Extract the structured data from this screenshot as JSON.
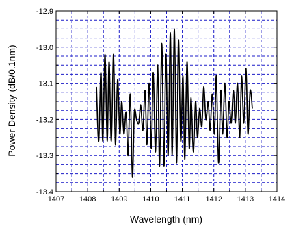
{
  "chart_data": {
    "type": "line",
    "title": "",
    "xlabel": "Wavelength (nm)",
    "ylabel": "Power Density (dB/0.1nm)",
    "xlim": [
      1407,
      1414
    ],
    "ylim": [
      -13.4,
      -12.9
    ],
    "x_ticks": [
      "1407",
      "1408",
      "1409",
      "1410",
      "1411",
      "1412",
      "1413",
      "1414"
    ],
    "y_ticks": [
      "-12.9",
      "-13.0",
      "-13.1",
      "-13.2",
      "-13.3",
      "-13.4"
    ],
    "grid": true,
    "grid_style": "dashed",
    "colors": {
      "line": "#000000",
      "grid": "#1c1cc8",
      "axis": "#000000"
    },
    "series": [
      {
        "x": [
          1408.28,
          1408.35,
          1408.42,
          1408.48,
          1408.55,
          1408.62,
          1408.68,
          1408.75,
          1408.82,
          1408.88,
          1408.95,
          1409.02,
          1409.08,
          1409.15,
          1409.22,
          1409.28,
          1409.35,
          1409.42,
          1409.48,
          1409.55,
          1409.62,
          1409.68,
          1409.75,
          1409.82,
          1409.88,
          1409.95,
          1410.02,
          1410.08,
          1410.15,
          1410.22,
          1410.28,
          1410.35,
          1410.42,
          1410.48,
          1410.55,
          1410.62,
          1410.68,
          1410.75,
          1410.82,
          1410.88,
          1410.95,
          1411.02,
          1411.08,
          1411.15,
          1411.22,
          1411.28,
          1411.35,
          1411.42,
          1411.48,
          1411.55,
          1411.62,
          1411.68,
          1411.75,
          1411.82,
          1411.88,
          1411.95,
          1412.02,
          1412.08,
          1412.15,
          1412.22,
          1412.28,
          1412.35,
          1412.42,
          1412.48,
          1412.55,
          1412.62,
          1412.68,
          1412.75,
          1412.82,
          1412.88,
          1412.95,
          1413.02,
          1413.08,
          1413.15,
          1413.22
        ],
        "y": [
          -13.11,
          -13.26,
          -13.07,
          -13.26,
          -13.02,
          -13.26,
          -13.04,
          -13.26,
          -13.02,
          -13.27,
          -13.09,
          -13.24,
          -13.15,
          -13.24,
          -13.18,
          -13.3,
          -13.13,
          -13.36,
          -13.18,
          -13.2,
          -13.21,
          -13.16,
          -13.23,
          -13.12,
          -13.27,
          -13.1,
          -13.28,
          -13.07,
          -13.29,
          -13.05,
          -13.33,
          -12.99,
          -13.33,
          -13.02,
          -13.3,
          -12.96,
          -13.3,
          -12.95,
          -13.32,
          -12.98,
          -13.26,
          -13.08,
          -13.31,
          -13.04,
          -13.28,
          -13.14,
          -13.29,
          -13.15,
          -13.25,
          -13.17,
          -13.22,
          -13.11,
          -13.2,
          -13.15,
          -13.23,
          -13.13,
          -13.24,
          -13.08,
          -13.32,
          -13.12,
          -13.24,
          -13.1,
          -13.25,
          -13.15,
          -13.21,
          -13.12,
          -13.21,
          -13.1,
          -13.25,
          -13.08,
          -13.21,
          -13.06,
          -13.24,
          -13.12,
          -13.17
        ]
      }
    ]
  }
}
